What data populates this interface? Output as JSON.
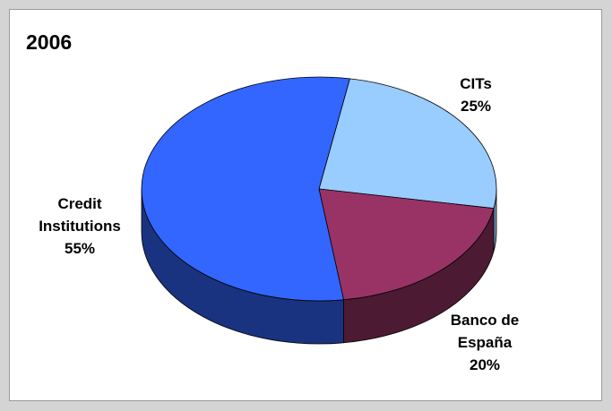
{
  "chart_data": {
    "type": "pie",
    "title": "2006",
    "three_d": true,
    "slices": [
      {
        "label": [
          "CITs"
        ],
        "value": 25,
        "value_label": "25%",
        "color": "#99ccff",
        "side_color": "#6f94ba"
      },
      {
        "label": [
          "Banco de",
          "España"
        ],
        "value": 20,
        "value_label": "20%",
        "color": "#993366",
        "side_color": "#4d1a33"
      },
      {
        "label": [
          "Credit",
          "Institutions"
        ],
        "value": 55,
        "value_label": "55%",
        "color": "#3366ff",
        "side_color": "#1a3380"
      }
    ],
    "legend": "none",
    "data_labels": "category-and-percent",
    "grid": false
  }
}
